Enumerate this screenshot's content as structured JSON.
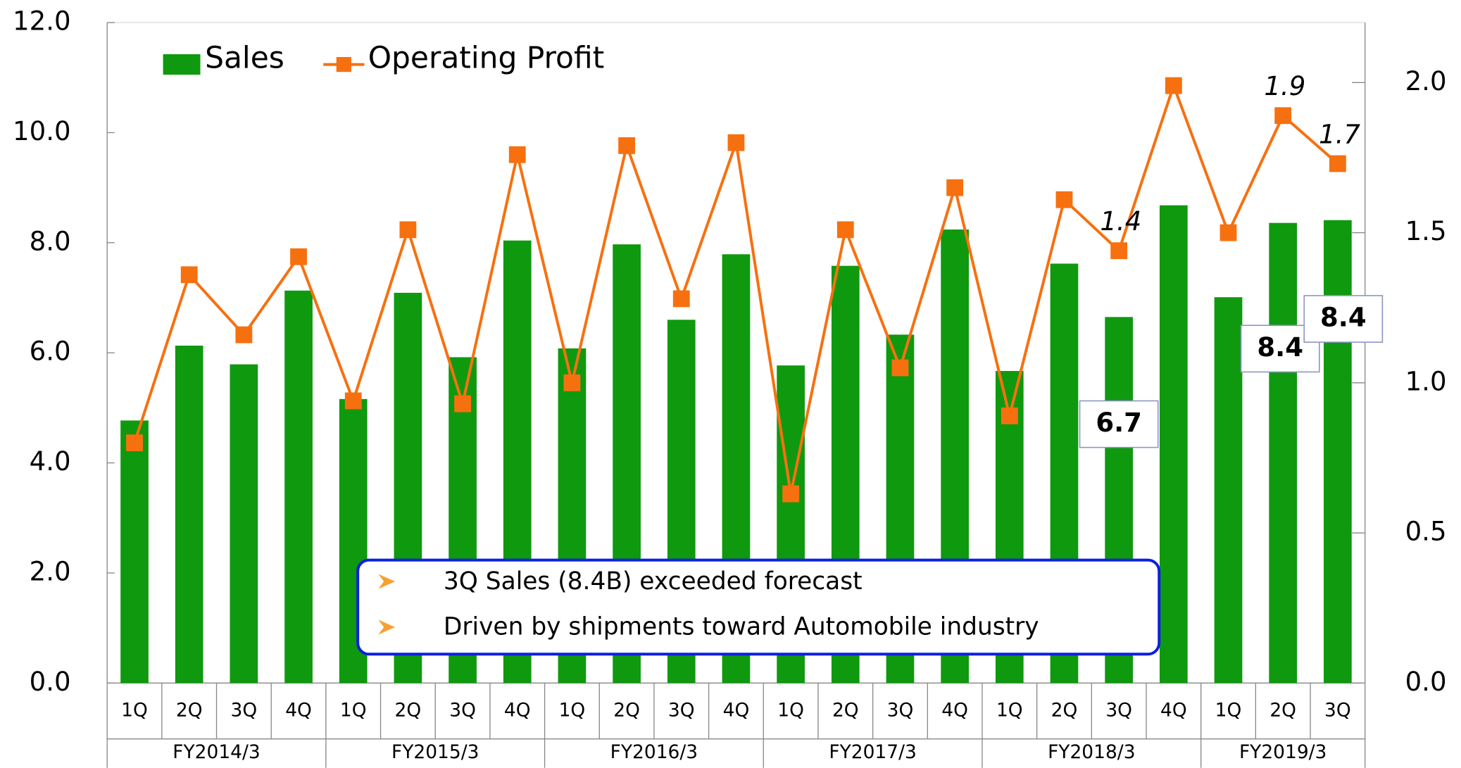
{
  "chart_data": {
    "type": "bar-line",
    "groups": [
      {
        "name": "FY2014/3",
        "quarters": [
          "1Q",
          "2Q",
          "3Q",
          "4Q"
        ]
      },
      {
        "name": "FY2015/3",
        "quarters": [
          "1Q",
          "2Q",
          "3Q",
          "4Q"
        ]
      },
      {
        "name": "FY2016/3",
        "quarters": [
          "1Q",
          "2Q",
          "3Q",
          "4Q"
        ]
      },
      {
        "name": "FY2017/3",
        "quarters": [
          "1Q",
          "2Q",
          "3Q",
          "4Q"
        ]
      },
      {
        "name": "FY2018/3",
        "quarters": [
          "1Q",
          "2Q",
          "3Q",
          "4Q"
        ]
      },
      {
        "name": "FY2019/3",
        "quarters": [
          "1Q",
          "2Q",
          "3Q"
        ]
      }
    ],
    "series": [
      {
        "name": "Sales",
        "type": "bar",
        "color": "#0f990f",
        "values": [
          4.77,
          6.13,
          5.79,
          7.13,
          5.16,
          7.09,
          5.92,
          8.04,
          6.08,
          7.97,
          6.6,
          7.79,
          5.77,
          7.58,
          6.33,
          8.24,
          5.67,
          7.62,
          6.65,
          8.68,
          7.01,
          8.36,
          8.41
        ],
        "value_labels": [
          null,
          null,
          null,
          null,
          null,
          null,
          null,
          null,
          null,
          null,
          null,
          null,
          null,
          null,
          null,
          null,
          null,
          null,
          "6.7",
          null,
          null,
          "8.4",
          "8.4"
        ]
      },
      {
        "name": "Operating Profit",
        "type": "line",
        "axis": "y2",
        "color": "#f7700f",
        "values": [
          0.8,
          1.36,
          1.16,
          1.42,
          0.94,
          1.51,
          0.93,
          1.76,
          1.0,
          1.79,
          1.28,
          1.8,
          0.63,
          1.51,
          1.05,
          1.65,
          0.89,
          1.61,
          1.44,
          1.99,
          1.5,
          1.89,
          1.73
        ],
        "value_labels": [
          null,
          null,
          null,
          null,
          null,
          null,
          null,
          null,
          null,
          null,
          null,
          null,
          null,
          null,
          null,
          null,
          null,
          null,
          "1.4",
          null,
          null,
          "1.9",
          "1.7"
        ]
      }
    ],
    "ylim": [
      0,
      12
    ],
    "yticks": [
      {
        "value": 0,
        "label": "0.0"
      },
      {
        "value": 2,
        "label": "2.0"
      },
      {
        "value": 4,
        "label": "4.0"
      },
      {
        "value": 6,
        "label": "6.0"
      },
      {
        "value": 8,
        "label": "8.0"
      },
      {
        "value": 10,
        "label": "10.0"
      },
      {
        "value": 12,
        "label": "12.0"
      }
    ],
    "y2lim": [
      0,
      2.2
    ],
    "y2ticks": [
      {
        "value": 0,
        "label": "0.0"
      },
      {
        "value": 0.5,
        "label": "0.5"
      },
      {
        "value": 1,
        "label": "1.0"
      },
      {
        "value": 1.5,
        "label": "1.5"
      },
      {
        "value": 2,
        "label": "2.0"
      }
    ],
    "legend": "top-left",
    "annotations": [
      "3Q Sales (8.4B) exceeded forecast",
      "Driven by shipments toward Automobile industry"
    ]
  }
}
